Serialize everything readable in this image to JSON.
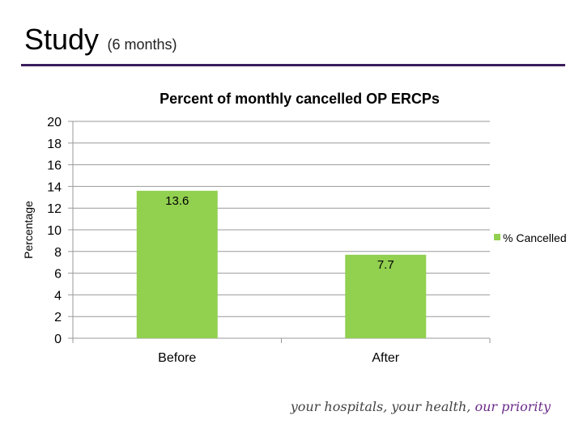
{
  "slide": {
    "title": "Study",
    "subtitle": "(6 months)"
  },
  "footer": {
    "text": "your hospitals, your health,",
    "accent": "our priority"
  },
  "colors": {
    "bar": "#92d050",
    "rule": "#3b1e5e",
    "accent": "#6b2c8a",
    "grid": "#999999"
  },
  "chart_data": {
    "type": "bar",
    "title": "Percent of monthly cancelled OP ERCPs",
    "xlabel": "",
    "ylabel": "Percentage",
    "categories": [
      "Before",
      "After"
    ],
    "series": [
      {
        "name": "% Cancelled",
        "values": [
          13.6,
          7.7
        ]
      }
    ],
    "data_labels": [
      "13.6",
      "7.7"
    ],
    "ylim": [
      0,
      20
    ],
    "yticks": [
      0,
      2,
      4,
      6,
      8,
      10,
      12,
      14,
      16,
      18,
      20
    ],
    "grid": true,
    "legend": "right"
  }
}
